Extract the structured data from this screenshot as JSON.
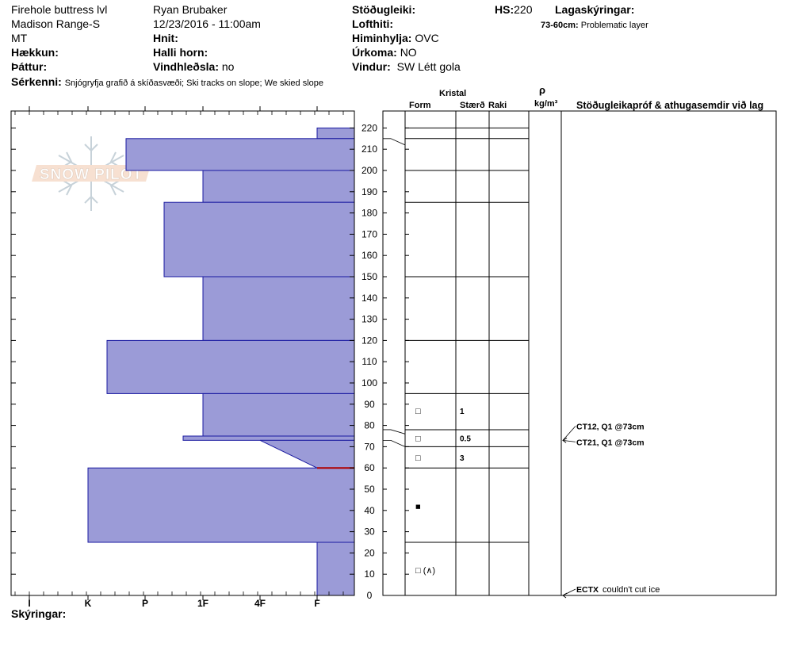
{
  "header": {
    "location": "Firehole buttress lvl",
    "range": "Madison Range-S",
    "state": "MT",
    "haekkun_label": "Hækkun:",
    "thattur_label": "Þáttur:",
    "observer": "Ryan Brubaker",
    "datetime": "12/23/2016 - 11:00am",
    "hnit_label": "Hnit:",
    "halli_label": "Halli horn:",
    "wind_loading_label": "Vindhleðsla:",
    "wind_loading_value": "no",
    "stability_label": "Stöðugleiki:",
    "air_temp_label": "Lofthiti:",
    "sky_label": "Himinhylja:",
    "sky_value": "OVC",
    "precip_label": "Úrkoma:",
    "precip_value": "NO",
    "wind_label": "Vindur:",
    "wind_value": "SW Létt gola",
    "hs_label": "HS:",
    "hs_value": "220",
    "layer_notes_label": "Lagaskýringar:",
    "layer_note_range": "73-60cm:",
    "layer_note_text": "Problematic layer",
    "remarks_label": "Sérkenni:",
    "remarks_value": "Snjógryfja grafið á skíðasvæði; Ski tracks on slope; We skied slope",
    "footer_label": "Skýringar:"
  },
  "logo": {
    "text": "SNOW PILOT"
  },
  "table_headers": {
    "crystal": "Kristal",
    "form": "Form",
    "size": "Stærð",
    "moisture": "Raki",
    "rho": "ρ",
    "density_unit": "kg/m³",
    "tests": "Stöðugleikapróf & athugasemdir við lag"
  },
  "chart_data": {
    "type": "bar",
    "subtype": "snow hand-hardness profile",
    "ylabel": "",
    "ylim": [
      0,
      225
    ],
    "y_ticks": [
      0,
      10,
      20,
      30,
      40,
      50,
      60,
      70,
      80,
      90,
      100,
      110,
      120,
      130,
      140,
      150,
      160,
      170,
      180,
      190,
      200,
      210,
      220
    ],
    "hardness_scale": [
      "I",
      "K",
      "P",
      "1F",
      "4F",
      "F"
    ],
    "hardness_axis_order": "decreasing left-to-right",
    "layers": [
      {
        "top": 220,
        "bottom": 215,
        "hardness": "F"
      },
      {
        "top": 215,
        "bottom": 200,
        "hardness": "P-"
      },
      {
        "top": 200,
        "bottom": 185,
        "hardness": "1F"
      },
      {
        "top": 185,
        "bottom": 150,
        "hardness": "P+"
      },
      {
        "top": 150,
        "bottom": 120,
        "hardness": "1F"
      },
      {
        "top": 120,
        "bottom": 95,
        "hardness": "K+"
      },
      {
        "top": 95,
        "bottom": 75,
        "hardness": "1F"
      },
      {
        "top": 75,
        "bottom": 73,
        "hardness": "P++"
      },
      {
        "top": 73,
        "bottom": 60,
        "hardness": "4F to F"
      },
      {
        "top": 60,
        "bottom": 25,
        "hardness": "K"
      },
      {
        "top": 25,
        "bottom": 0,
        "hardness": "F"
      }
    ],
    "grid_boundaries": [
      220,
      215,
      200,
      185,
      150,
      120,
      95,
      78,
      70,
      60,
      25,
      0
    ],
    "crystals": [
      {
        "height": 87,
        "form": "□",
        "size": "1"
      },
      {
        "height": 74,
        "form": "□",
        "size": "0.5"
      },
      {
        "height": 65,
        "form": "□",
        "size": "3"
      },
      {
        "height": 42,
        "form": "■",
        "size": ""
      },
      {
        "height": 12,
        "form": "□ (∧)",
        "size": ""
      }
    ],
    "tests": [
      {
        "height": 73,
        "code": "CT12, Q1 @73cm",
        "comment": ""
      },
      {
        "height": 73,
        "code": "CT21, Q1 @73cm",
        "comment": ""
      },
      {
        "height": 0,
        "code": "ECTX",
        "comment": "couldn't cut ice"
      }
    ],
    "problem_layer": {
      "top": 73,
      "bottom": 60
    },
    "colors": {
      "fill": "#9b9bd7",
      "stroke": "#1a1aa0",
      "problem": "#b00000"
    }
  }
}
